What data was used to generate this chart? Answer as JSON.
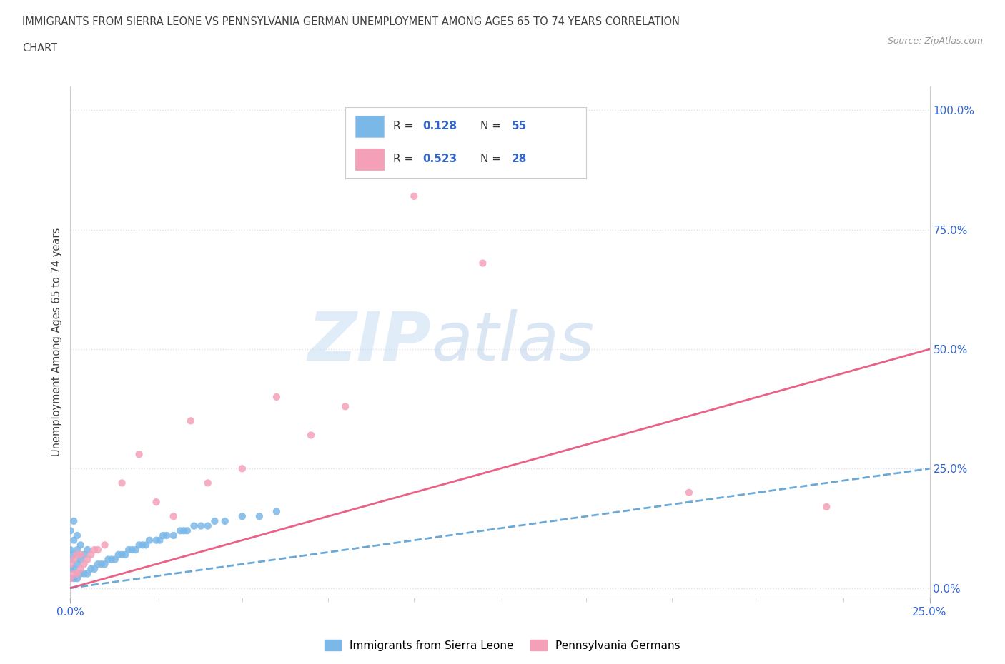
{
  "title_line1": "IMMIGRANTS FROM SIERRA LEONE VS PENNSYLVANIA GERMAN UNEMPLOYMENT AMONG AGES 65 TO 74 YEARS CORRELATION",
  "title_line2": "CHART",
  "source": "Source: ZipAtlas.com",
  "ylabel_label": "Unemployment Among Ages 65 to 74 years",
  "watermark_zip": "ZIP",
  "watermark_atlas": "atlas",
  "sierra_leone_color": "#7ab8e8",
  "penn_german_color": "#f4a0b8",
  "sierra_leone_line_color": "#5a9fd4",
  "penn_german_line_color": "#e8507a",
  "bg_color": "#ffffff",
  "grid_color": "#e0e0e8",
  "title_color": "#404040",
  "tick_label_color": "#3366cc",
  "axis_color": "#cccccc",
  "xlim": [
    0.0,
    0.25
  ],
  "ylim": [
    -0.02,
    1.05
  ],
  "yticks": [
    0.0,
    0.25,
    0.5,
    0.75,
    1.0
  ],
  "xticks": [
    0.0,
    0.25
  ],
  "sierra_leone_x": [
    0.0,
    0.0,
    0.0,
    0.0,
    0.0,
    0.001,
    0.001,
    0.001,
    0.001,
    0.001,
    0.002,
    0.002,
    0.002,
    0.002,
    0.003,
    0.003,
    0.003,
    0.004,
    0.004,
    0.005,
    0.005,
    0.006,
    0.007,
    0.008,
    0.009,
    0.01,
    0.011,
    0.012,
    0.013,
    0.014,
    0.015,
    0.016,
    0.017,
    0.018,
    0.019,
    0.02,
    0.021,
    0.022,
    0.023,
    0.025,
    0.026,
    0.027,
    0.028,
    0.03,
    0.032,
    0.033,
    0.034,
    0.036,
    0.038,
    0.04,
    0.042,
    0.045,
    0.05,
    0.055,
    0.06
  ],
  "sierra_leone_y": [
    0.02,
    0.04,
    0.06,
    0.08,
    0.12,
    0.02,
    0.04,
    0.07,
    0.1,
    0.14,
    0.02,
    0.05,
    0.08,
    0.11,
    0.03,
    0.06,
    0.09,
    0.03,
    0.07,
    0.03,
    0.08,
    0.04,
    0.04,
    0.05,
    0.05,
    0.05,
    0.06,
    0.06,
    0.06,
    0.07,
    0.07,
    0.07,
    0.08,
    0.08,
    0.08,
    0.09,
    0.09,
    0.09,
    0.1,
    0.1,
    0.1,
    0.11,
    0.11,
    0.11,
    0.12,
    0.12,
    0.12,
    0.13,
    0.13,
    0.13,
    0.14,
    0.14,
    0.15,
    0.15,
    0.16
  ],
  "penn_german_x": [
    0.0,
    0.0,
    0.001,
    0.001,
    0.002,
    0.002,
    0.003,
    0.003,
    0.004,
    0.005,
    0.006,
    0.007,
    0.008,
    0.01,
    0.015,
    0.02,
    0.025,
    0.03,
    0.035,
    0.04,
    0.05,
    0.06,
    0.07,
    0.08,
    0.1,
    0.12,
    0.18,
    0.22
  ],
  "penn_german_y": [
    0.02,
    0.05,
    0.03,
    0.06,
    0.03,
    0.07,
    0.04,
    0.07,
    0.05,
    0.06,
    0.07,
    0.08,
    0.08,
    0.09,
    0.22,
    0.28,
    0.18,
    0.15,
    0.35,
    0.22,
    0.25,
    0.4,
    0.32,
    0.38,
    0.82,
    0.68,
    0.2,
    0.17
  ]
}
